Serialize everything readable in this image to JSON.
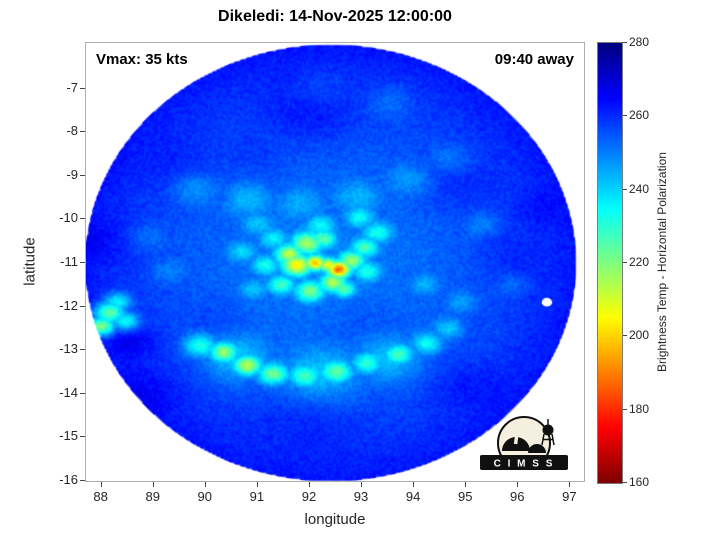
{
  "title": "Dikeledi: 14-Nov-2025 12:00:00",
  "annotations": {
    "vmax": "Vmax: 35 kts",
    "time_away": "09:40 away"
  },
  "storm": {
    "name": "Dikeledi",
    "datetime": "14-Nov-2025 12:00:00",
    "vmax_kts": 35,
    "overpass_offset": "09:40 away"
  },
  "axes": {
    "xlabel": "longitude",
    "ylabel": "latitude",
    "xticks": [
      88,
      89,
      90,
      91,
      92,
      93,
      94,
      95,
      96,
      97
    ],
    "yticks": [
      -7,
      -8,
      -9,
      -10,
      -11,
      -12,
      -13,
      -14,
      -15,
      -16
    ]
  },
  "colorbar": {
    "label": "Brightness Temp - Horizontal Polarization",
    "ticks": [
      160,
      180,
      200,
      220,
      240,
      260,
      280
    ],
    "min": 160,
    "max": 280,
    "colormap": "jet-reversed",
    "top_color": "#00007f",
    "bottom_color": "#7f0000"
  },
  "logo": {
    "text": "C I M S S"
  },
  "chart_data": {
    "type": "heatmap",
    "title": "Dikeledi: 14-Nov-2025 12:00:00",
    "xlabel": "longitude",
    "ylabel": "latitude",
    "value_label": "Brightness Temp - Horizontal Polarization (K)",
    "value_range": [
      160,
      280
    ],
    "xlim": [
      87.7,
      97.3
    ],
    "ylim": [
      -16.05,
      -5.95
    ],
    "base_temp_k": 254,
    "edge_darken_k": 9,
    "noise_k": 6,
    "disk": {
      "lon": 92.4,
      "lat": -11.0,
      "rlon": 4.72,
      "rlat": 5.02
    },
    "storm_center": {
      "lon": 92.2,
      "lat": -11.0
    },
    "features": [
      [
        92.2,
        -11.0,
        1.6,
        249
      ],
      [
        92.2,
        -11.0,
        2.6,
        251
      ],
      [
        91.95,
        -10.55,
        0.3,
        215
      ],
      [
        92.25,
        -10.45,
        0.25,
        224
      ],
      [
        91.6,
        -10.8,
        0.26,
        212
      ],
      [
        91.75,
        -11.05,
        0.28,
        203
      ],
      [
        92.1,
        -11.0,
        0.2,
        197
      ],
      [
        92.55,
        -11.15,
        0.22,
        186
      ],
      [
        92.35,
        -11.05,
        0.18,
        204
      ],
      [
        92.8,
        -10.95,
        0.26,
        216
      ],
      [
        93.05,
        -10.65,
        0.26,
        226
      ],
      [
        93.3,
        -10.3,
        0.28,
        232
      ],
      [
        92.95,
        -9.95,
        0.28,
        234
      ],
      [
        92.45,
        -11.45,
        0.26,
        214
      ],
      [
        92.0,
        -11.65,
        0.28,
        220
      ],
      [
        91.45,
        -11.5,
        0.26,
        227
      ],
      [
        91.15,
        -11.05,
        0.26,
        232
      ],
      [
        91.3,
        -10.45,
        0.26,
        235
      ],
      [
        92.65,
        -11.6,
        0.22,
        223
      ],
      [
        93.1,
        -11.2,
        0.26,
        231
      ],
      [
        92.2,
        -10.15,
        0.28,
        234
      ],
      [
        91.0,
        -10.1,
        0.32,
        241
      ],
      [
        90.7,
        -10.75,
        0.28,
        239
      ],
      [
        90.9,
        -11.6,
        0.28,
        241
      ],
      [
        89.9,
        -12.9,
        0.32,
        229
      ],
      [
        90.35,
        -13.05,
        0.27,
        215
      ],
      [
        90.8,
        -13.35,
        0.27,
        211
      ],
      [
        91.3,
        -13.55,
        0.29,
        220
      ],
      [
        91.9,
        -13.6,
        0.31,
        225
      ],
      [
        92.5,
        -13.5,
        0.31,
        222
      ],
      [
        93.1,
        -13.3,
        0.29,
        228
      ],
      [
        93.7,
        -13.1,
        0.28,
        225
      ],
      [
        94.25,
        -12.85,
        0.28,
        232
      ],
      [
        94.65,
        -12.5,
        0.28,
        239
      ],
      [
        92.2,
        -13.55,
        0.75,
        240
      ],
      [
        90.6,
        -13.2,
        0.65,
        240
      ],
      [
        93.5,
        -13.2,
        0.65,
        241
      ],
      [
        88.15,
        -12.15,
        0.3,
        216
      ],
      [
        88.0,
        -12.45,
        0.26,
        211
      ],
      [
        88.45,
        -12.35,
        0.26,
        226
      ],
      [
        88.3,
        -11.9,
        0.26,
        229
      ],
      [
        89.8,
        -9.3,
        0.45,
        244
      ],
      [
        90.8,
        -9.55,
        0.45,
        242
      ],
      [
        91.8,
        -9.65,
        0.45,
        244
      ],
      [
        92.9,
        -9.5,
        0.45,
        243
      ],
      [
        93.9,
        -9.1,
        0.45,
        245
      ],
      [
        94.7,
        -8.6,
        0.4,
        247
      ],
      [
        95.3,
        -10.1,
        0.35,
        247
      ],
      [
        93.55,
        -7.3,
        0.45,
        248
      ],
      [
        92.2,
        -7.0,
        0.55,
        250
      ],
      [
        88.9,
        -10.4,
        0.35,
        248
      ],
      [
        89.3,
        -11.2,
        0.35,
        247
      ],
      [
        95.9,
        -11.5,
        0.3,
        248
      ],
      [
        94.9,
        -11.9,
        0.3,
        245
      ],
      [
        94.2,
        -11.5,
        0.27,
        243
      ],
      [
        92.0,
        -7.6,
        0.9,
        261
      ],
      [
        94.8,
        -9.3,
        0.8,
        259
      ],
      [
        95.8,
        -10.8,
        0.7,
        258
      ],
      [
        89.6,
        -8.8,
        0.8,
        258
      ],
      [
        91.0,
        -8.5,
        0.7,
        258
      ],
      [
        93.0,
        -12.3,
        0.7,
        257
      ],
      [
        90.2,
        -12.2,
        0.6,
        257
      ],
      [
        92.0,
        -14.6,
        0.9,
        258
      ],
      [
        95.0,
        -13.8,
        0.7,
        259
      ],
      [
        88.8,
        -14.0,
        0.7,
        259
      ],
      [
        87.9,
        -10.5,
        0.55,
        259
      ],
      [
        96.3,
        -9.8,
        0.55,
        258
      ],
      [
        88.6,
        -12.8,
        0.45,
        262
      ]
    ],
    "missing": [
      [
        96.55,
        -11.9,
        0.1
      ]
    ]
  }
}
